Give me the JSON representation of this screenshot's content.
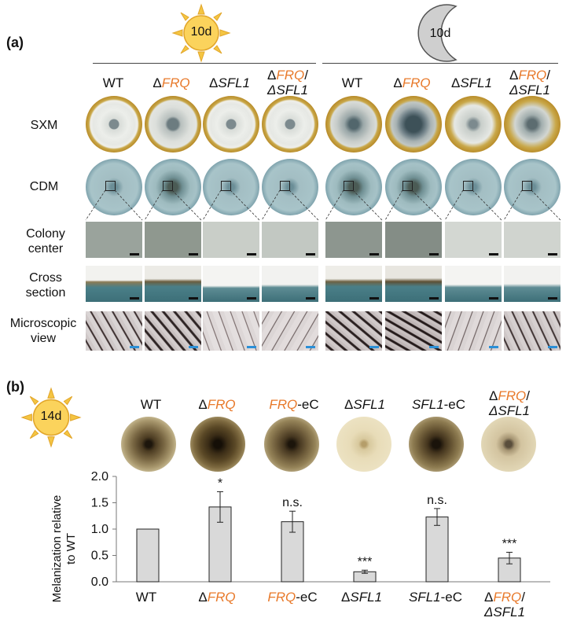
{
  "panel_a": {
    "label": "(a)",
    "sun_label": "10d",
    "moon_label": "10d",
    "headers": [
      {
        "pre": "",
        "name": "WT",
        "style": "plain"
      },
      {
        "pre": "Δ",
        "name": "FRQ",
        "style": "orange"
      },
      {
        "pre": "Δ",
        "name": "SFL1",
        "style": "italic"
      },
      {
        "pre": "Δ",
        "name": "FRQ",
        "post": "/",
        "line2": "ΔSFL1",
        "style": "double"
      }
    ],
    "rows": {
      "sxm": "SXM",
      "cdm": "CDM",
      "colony_center": "Colony center",
      "cross_section": "Cross section",
      "microscopic_view": "Microscopic view"
    }
  },
  "panel_b": {
    "label": "(b)",
    "sun_label": "14d",
    "strains": [
      {
        "pre": "",
        "name": "WT",
        "post": "",
        "style": "plain"
      },
      {
        "pre": "Δ",
        "name": "FRQ",
        "post": "",
        "style": "orange"
      },
      {
        "pre": "",
        "name": "FRQ",
        "post": "-eC",
        "style": "orange"
      },
      {
        "pre": "Δ",
        "name": "SFL1",
        "post": "",
        "style": "italic"
      },
      {
        "pre": "",
        "name": "SFL1",
        "post": "-eC",
        "style": "italic"
      },
      {
        "pre": "Δ",
        "name": "FRQ",
        "post": "/",
        "line2": "ΔSFL1",
        "style": "double"
      }
    ]
  },
  "chart_data": {
    "type": "bar",
    "categories": [
      "WT",
      "ΔFRQ",
      "FRQ-eC",
      "ΔSFL1",
      "SFL1-eC",
      "ΔFRQ/ΔSFL1"
    ],
    "values": [
      1.0,
      1.42,
      1.14,
      0.19,
      1.23,
      0.45
    ],
    "errors": [
      0.0,
      0.29,
      0.2,
      0.03,
      0.16,
      0.11
    ],
    "significance": [
      "",
      "*",
      "n.s.",
      "***",
      "n.s.",
      "***"
    ],
    "ylabel": "Melanization relative to WT",
    "yticks": [
      "0.0",
      "0.5",
      "1.0",
      "1.5",
      "2.0"
    ],
    "ylim": [
      0,
      2.0
    ],
    "bar_color": "#d9d9d9"
  }
}
